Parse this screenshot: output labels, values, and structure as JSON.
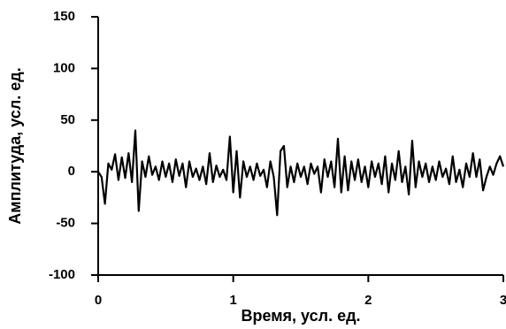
{
  "chart_data": {
    "type": "line",
    "x_label": "Время, усл. ед.",
    "y_label": "Амплитуда, усл. ед.",
    "xlim": [
      0,
      3
    ],
    "xticks": [
      0,
      1,
      2,
      3
    ],
    "ylim": [
      -100,
      150
    ],
    "yticks": [
      -100,
      -50,
      0,
      50,
      100,
      150
    ],
    "grid": false,
    "series": [
      {
        "color": "#000000",
        "x": [
          0,
          0.025,
          0.05,
          0.075,
          0.1,
          0.125,
          0.15,
          0.175,
          0.2,
          0.225,
          0.25,
          0.275,
          0.3,
          0.325,
          0.35,
          0.375,
          0.4,
          0.425,
          0.45,
          0.475,
          0.5,
          0.525,
          0.55,
          0.575,
          0.6,
          0.625,
          0.65,
          0.675,
          0.7,
          0.725,
          0.75,
          0.775,
          0.8,
          0.825,
          0.85,
          0.875,
          0.9,
          0.925,
          0.95,
          0.975,
          1,
          1.025,
          1.05,
          1.075,
          1.1,
          1.125,
          1.15,
          1.175,
          1.2,
          1.225,
          1.25,
          1.275,
          1.3,
          1.325,
          1.35,
          1.375,
          1.4,
          1.425,
          1.45,
          1.475,
          1.5,
          1.525,
          1.55,
          1.575,
          1.6,
          1.625,
          1.65,
          1.675,
          1.7,
          1.725,
          1.75,
          1.775,
          1.8,
          1.825,
          1.85,
          1.875,
          1.9,
          1.925,
          1.95,
          1.975,
          2,
          2.025,
          2.05,
          2.075,
          2.1,
          2.125,
          2.15,
          2.175,
          2.2,
          2.225,
          2.25,
          2.275,
          2.3,
          2.325,
          2.35,
          2.375,
          2.4,
          2.425,
          2.45,
          2.475,
          2.5,
          2.525,
          2.55,
          2.575,
          2.6,
          2.625,
          2.65,
          2.675,
          2.7,
          2.725,
          2.75,
          2.775,
          2.8,
          2.825,
          2.85,
          2.875,
          2.9,
          2.925,
          2.95,
          2.975,
          3
        ],
        "values": [
          0,
          -5,
          -31,
          8,
          2,
          17,
          -8,
          14,
          -6,
          18,
          -10,
          40,
          -38,
          10,
          -5,
          15,
          -3,
          5,
          -8,
          10,
          -5,
          8,
          -10,
          12,
          -4,
          8,
          -15,
          10,
          -5,
          3,
          -8,
          5,
          -12,
          18,
          -10,
          6,
          -5,
          2,
          -8,
          34,
          -20,
          20,
          -25,
          10,
          -5,
          5,
          -8,
          8,
          -4,
          2,
          -15,
          10,
          -5,
          -42,
          20,
          25,
          -15,
          5,
          -10,
          8,
          -5,
          5,
          -12,
          8,
          -2,
          5,
          -20,
          12,
          -5,
          10,
          -15,
          32,
          -20,
          15,
          -18,
          10,
          -8,
          12,
          -10,
          5,
          -15,
          10,
          -5,
          8,
          -12,
          15,
          -20,
          8,
          -8,
          20,
          -10,
          5,
          -22,
          30,
          -15,
          10,
          -5,
          8,
          -10,
          5,
          -8,
          10,
          -5,
          3,
          -12,
          15,
          -10,
          2,
          -15,
          8,
          -5,
          18,
          -5,
          12,
          -18,
          -5,
          5,
          -3,
          8,
          15,
          5
        ]
      }
    ]
  }
}
